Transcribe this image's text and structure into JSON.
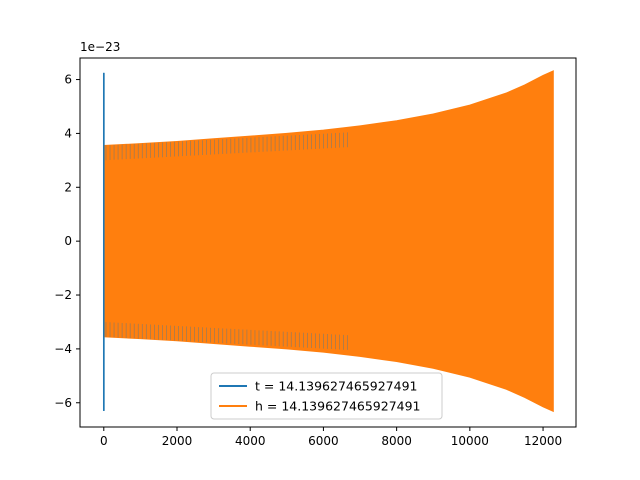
{
  "chart_data": {
    "type": "line",
    "title": "",
    "xlabel": "",
    "ylabel": "",
    "xlim": [
      -650,
      12900
    ],
    "ylim": [
      -6.9,
      6.8
    ],
    "y_offset_label": "1e−23",
    "x_ticks": [
      0,
      2000,
      4000,
      6000,
      8000,
      10000,
      12000
    ],
    "y_ticks": [
      -6,
      -4,
      -2,
      0,
      2,
      4,
      6
    ],
    "grid": false,
    "legend_position": "lower-center",
    "series": [
      {
        "name": "t = 14.139627465927491",
        "color": "#1f77b4",
        "x": [
          0,
          0,
          0,
          0,
          0
        ],
        "y": [
          2.9,
          6.25,
          -6.3,
          6.25,
          -3.55
        ]
      },
      {
        "name": "h = 14.139627465927491",
        "color": "#ff7f0e",
        "envelope": {
          "x": [
            0,
            1000,
            2000,
            3000,
            4000,
            5000,
            6000,
            7000,
            8000,
            9000,
            10000,
            11000,
            11500,
            12000,
            12280
          ],
          "upper": [
            3.55,
            3.62,
            3.7,
            3.8,
            3.9,
            4.0,
            4.12,
            4.28,
            4.47,
            4.72,
            5.05,
            5.5,
            5.8,
            6.15,
            6.32
          ],
          "lower": [
            -3.55,
            -3.62,
            -3.7,
            -3.8,
            -3.9,
            -4.0,
            -4.12,
            -4.28,
            -4.47,
            -4.72,
            -5.05,
            -5.5,
            -5.8,
            -6.15,
            -6.32
          ]
        }
      }
    ]
  }
}
